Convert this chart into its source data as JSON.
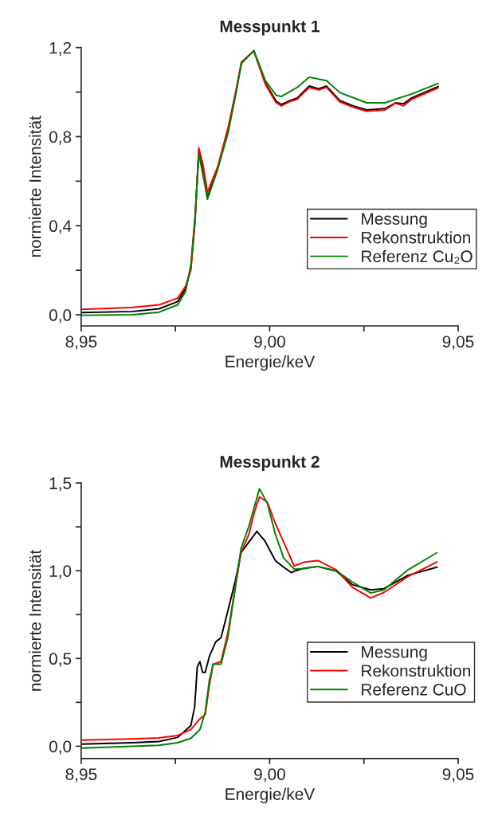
{
  "chart_data": [
    {
      "type": "line",
      "title": "Messpunkt 1",
      "xlabel": "Energie/keV",
      "ylabel": "normierte Intensität",
      "xlim": [
        8.95,
        9.05
      ],
      "ylim": [
        -0.05,
        1.2
      ],
      "xticks": [
        {
          "value": 8.95,
          "label": "8,95"
        },
        {
          "value": 8.975,
          "label": null
        },
        {
          "value": 9.0,
          "label": "9,00"
        },
        {
          "value": 9.025,
          "label": null
        },
        {
          "value": 9.05,
          "label": "9,05"
        }
      ],
      "yticks": [
        {
          "value": 0.0,
          "label": "0,0"
        },
        {
          "value": 0.2,
          "label": null
        },
        {
          "value": 0.4,
          "label": "0,4"
        },
        {
          "value": 0.6,
          "label": null
        },
        {
          "value": 0.8,
          "label": "0,8"
        },
        {
          "value": 1.0,
          "label": null
        },
        {
          "value": 1.2,
          "label": "1,2"
        }
      ],
      "grid": false,
      "legend": "right",
      "series": [
        {
          "name": "Messung",
          "color": "#000000",
          "x": [
            8.95,
            8.9636,
            8.9707,
            8.9756,
            8.9777,
            8.9791,
            8.9802,
            8.9812,
            8.9823,
            8.9835,
            8.9862,
            8.989,
            8.9911,
            8.9925,
            8.9958,
            8.9989,
            9.0017,
            9.0031,
            9.0052,
            9.0073,
            9.0105,
            9.013,
            9.0151,
            9.0186,
            9.0222,
            9.0257,
            9.0306,
            9.0334,
            9.0355,
            9.0377,
            9.0447
          ],
          "values": [
            0.01,
            0.015,
            0.027,
            0.06,
            0.117,
            0.212,
            0.426,
            0.736,
            0.646,
            0.527,
            0.658,
            0.831,
            1.004,
            1.131,
            1.186,
            1.04,
            0.96,
            0.944,
            0.96,
            0.974,
            1.027,
            1.015,
            1.027,
            0.962,
            0.938,
            0.92,
            0.926,
            0.952,
            0.948,
            0.974,
            1.025
          ]
        },
        {
          "name": "Rekonstruktion",
          "color": "#ff0000",
          "x": [
            8.95,
            8.9636,
            8.9707,
            8.9756,
            8.9777,
            8.9791,
            8.9802,
            8.9812,
            8.9823,
            8.9835,
            8.9862,
            8.989,
            8.9911,
            8.9925,
            8.9958,
            8.9989,
            9.0017,
            9.0031,
            9.0052,
            9.0073,
            9.0105,
            9.013,
            9.0151,
            9.0186,
            9.0222,
            9.0257,
            9.0306,
            9.0334,
            9.0355,
            9.0377,
            9.0447
          ],
          "values": [
            0.024,
            0.033,
            0.045,
            0.075,
            0.129,
            0.2,
            0.414,
            0.75,
            0.676,
            0.551,
            0.664,
            0.843,
            1.01,
            1.135,
            1.186,
            1.033,
            0.952,
            0.938,
            0.956,
            0.968,
            1.021,
            1.01,
            1.021,
            0.956,
            0.932,
            0.914,
            0.92,
            0.95,
            0.938,
            0.968,
            1.019
          ]
        },
        {
          "name": "Referenz Cu₂O",
          "color": "#008000",
          "x": [
            8.95,
            8.9636,
            8.9707,
            8.9756,
            8.9777,
            8.9791,
            8.9802,
            8.9812,
            8.9823,
            8.9835,
            8.9862,
            8.989,
            8.9911,
            8.9925,
            8.9958,
            8.9989,
            9.0017,
            9.0031,
            9.0073,
            9.0105,
            9.0151,
            9.0186,
            9.0257,
            9.0306,
            9.0377,
            9.0447
          ],
          "values": [
            -0.002,
            0.0,
            0.012,
            0.045,
            0.105,
            0.224,
            0.438,
            0.724,
            0.629,
            0.519,
            0.652,
            0.819,
            0.998,
            1.129,
            1.186,
            1.051,
            0.986,
            0.98,
            1.021,
            1.067,
            1.051,
            0.998,
            0.952,
            0.952,
            0.992,
            1.039
          ]
        }
      ]
    },
    {
      "type": "line",
      "title": "Messpunkt 2",
      "xlabel": "Energie/keV",
      "ylabel": "normierte Intensität",
      "xlim": [
        8.95,
        9.05
      ],
      "ylim": [
        -0.07,
        1.5
      ],
      "xticks": [
        {
          "value": 8.95,
          "label": "8,95"
        },
        {
          "value": 8.975,
          "label": null
        },
        {
          "value": 9.0,
          "label": "9,00"
        },
        {
          "value": 9.025,
          "label": null
        },
        {
          "value": 9.05,
          "label": "9,05"
        }
      ],
      "yticks": [
        {
          "value": 0.0,
          "label": "0,0"
        },
        {
          "value": 0.25,
          "label": null
        },
        {
          "value": 0.5,
          "label": "0,5"
        },
        {
          "value": 0.75,
          "label": null
        },
        {
          "value": 1.0,
          "label": "1,0"
        },
        {
          "value": 1.25,
          "label": null
        },
        {
          "value": 1.5,
          "label": "1,5"
        }
      ],
      "grid": false,
      "legend": "right",
      "series": [
        {
          "name": "Messung",
          "color": "#000000",
          "x": [
            8.9503,
            8.9636,
            8.9706,
            8.9756,
            8.9791,
            8.9801,
            8.9808,
            8.9815,
            8.9822,
            8.9829,
            8.984,
            8.9857,
            8.9871,
            8.9889,
            8.991,
            8.9924,
            8.9945,
            8.9966,
            8.9987,
            9.0015,
            9.0037,
            9.0058,
            9.0065,
            9.0093,
            9.0128,
            9.0177,
            9.0219,
            9.0268,
            9.0303,
            9.0367,
            9.0444
          ],
          "values": [
            0.012,
            0.02,
            0.027,
            0.05,
            0.118,
            0.224,
            0.452,
            0.482,
            0.421,
            0.421,
            0.512,
            0.595,
            0.618,
            0.77,
            0.952,
            1.103,
            1.164,
            1.224,
            1.171,
            1.058,
            1.02,
            0.989,
            0.997,
            1.015,
            1.024,
            0.997,
            0.921,
            0.891,
            0.898,
            0.974,
            1.02
          ]
        },
        {
          "name": "Rekonstruktion",
          "color": "#ff0000",
          "x": [
            8.9503,
            8.9636,
            8.9706,
            8.9756,
            8.9791,
            8.9815,
            8.9829,
            8.984,
            8.985,
            8.9871,
            8.9889,
            8.991,
            8.9924,
            8.9945,
            8.9959,
            8.9973,
            8.9994,
            9.0015,
            9.0037,
            9.0065,
            9.0093,
            9.0128,
            9.0177,
            9.0219,
            9.0268,
            9.0303,
            9.0367,
            9.0444
          ],
          "values": [
            0.035,
            0.042,
            0.047,
            0.061,
            0.095,
            0.156,
            0.179,
            0.345,
            0.467,
            0.482,
            0.645,
            0.921,
            1.103,
            1.209,
            1.33,
            1.421,
            1.39,
            1.27,
            1.164,
            1.027,
            1.05,
            1.058,
            1.005,
            0.906,
            0.845,
            0.876,
            0.967,
            1.05
          ]
        },
        {
          "name": "Referenz CuO",
          "color": "#008000",
          "x": [
            8.9503,
            8.9636,
            8.9706,
            8.9756,
            8.9791,
            8.9815,
            8.9829,
            8.984,
            8.985,
            8.9871,
            8.9889,
            8.991,
            8.9924,
            8.9945,
            8.9973,
            8.9994,
            9.0015,
            9.0037,
            9.0065,
            9.0093,
            9.0128,
            9.0177,
            9.0219,
            9.0268,
            9.0303,
            9.0367,
            9.0444
          ],
          "values": [
            -0.011,
            0.0,
            0.005,
            0.02,
            0.045,
            0.095,
            0.194,
            0.376,
            0.467,
            0.467,
            0.618,
            0.921,
            1.126,
            1.255,
            1.467,
            1.383,
            1.209,
            1.073,
            1.009,
            1.012,
            1.024,
            1.0,
            0.936,
            0.873,
            0.891,
            1.005,
            1.103
          ]
        }
      ]
    }
  ]
}
